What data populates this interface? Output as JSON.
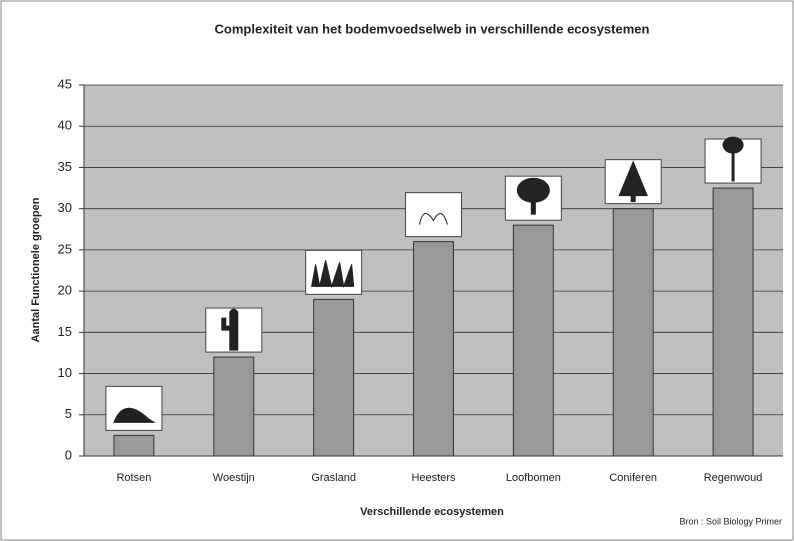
{
  "chart_data": {
    "type": "bar",
    "title": "Complexiteit van het bodemvoedselweb in verschillende ecosystemen",
    "x_label": "Verschillende ecosystemen",
    "y_label": "Aantal Functionele groepen",
    "source": "Bron : Soil Biology Primer",
    "categories": [
      "Rotsen",
      "Woestijn",
      "Grasland",
      "Heesters",
      "Loofbomen",
      "Coniferen",
      "Regenwoud"
    ],
    "values": [
      2.5,
      12,
      19,
      26,
      28,
      30,
      32.5
    ],
    "color": "#999999",
    "ylim": [
      0,
      45
    ],
    "yticks": [
      0,
      5,
      10,
      15,
      20,
      25,
      30,
      35,
      40,
      45
    ],
    "grid": true
  }
}
